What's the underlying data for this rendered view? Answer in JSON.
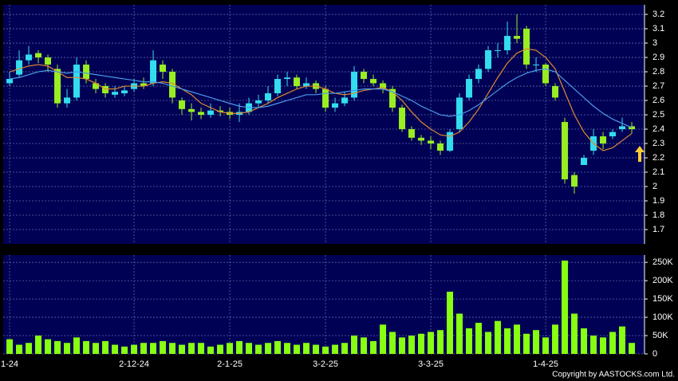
{
  "chart_data": [
    {
      "type": "candlestick",
      "xlim": [
        -0.67,
        66.33
      ],
      "ylim": [
        1.6,
        3.267
      ],
      "yticks": [
        1.7,
        1.8,
        1.9,
        2,
        2.1,
        2.2,
        2.3,
        2.4,
        2.5,
        2.6,
        2.7,
        2.8,
        2.9,
        3,
        3.1,
        3.2
      ],
      "grid": true,
      "up_color": "#33ddee",
      "down_color": "#99ee22",
      "open": [
        2.72,
        2.78,
        2.88,
        2.93,
        2.9,
        2.82,
        2.58,
        2.62,
        2.85,
        2.72,
        2.7,
        2.64,
        2.65,
        2.68,
        2.72,
        2.72,
        2.85,
        2.8,
        2.6,
        2.54,
        2.52,
        2.5,
        2.53,
        2.52,
        2.5,
        2.52,
        2.58,
        2.6,
        2.65,
        2.75,
        2.76,
        2.7,
        2.72,
        2.68,
        2.55,
        2.58,
        2.62,
        2.8,
        2.75,
        2.72,
        2.68,
        2.55,
        2.4,
        2.34,
        2.32,
        2.3,
        2.25,
        2.4,
        2.62,
        2.75,
        2.82,
        2.95,
        2.95,
        3.05,
        3.1,
        2.85,
        2.85,
        2.7,
        2.45,
        2.08,
        2.15,
        2.25,
        2.35,
        2.35,
        2.4,
        2.42
      ],
      "high": [
        2.8,
        2.95,
        2.98,
        2.95,
        2.92,
        2.85,
        2.68,
        2.9,
        2.88,
        2.75,
        2.72,
        2.7,
        2.7,
        2.75,
        2.76,
        2.95,
        2.88,
        2.82,
        2.62,
        2.58,
        2.55,
        2.58,
        2.56,
        2.55,
        2.58,
        2.62,
        2.64,
        2.7,
        2.78,
        2.8,
        2.78,
        2.76,
        2.74,
        2.7,
        2.62,
        2.66,
        2.84,
        2.82,
        2.78,
        2.74,
        2.7,
        2.57,
        2.42,
        2.36,
        2.35,
        2.32,
        2.4,
        2.65,
        2.78,
        2.85,
        2.98,
        3.0,
        3.15,
        3.2,
        3.12,
        2.9,
        2.86,
        2.72,
        2.48,
        2.1,
        2.22,
        2.4,
        2.38,
        2.4,
        2.48,
        2.45
      ],
      "low": [
        2.7,
        2.76,
        2.85,
        2.86,
        2.8,
        2.55,
        2.55,
        2.6,
        2.72,
        2.65,
        2.62,
        2.62,
        2.63,
        2.66,
        2.68,
        2.7,
        2.75,
        2.58,
        2.5,
        2.46,
        2.47,
        2.48,
        2.49,
        2.47,
        2.45,
        2.5,
        2.55,
        2.58,
        2.63,
        2.7,
        2.68,
        2.68,
        2.65,
        2.52,
        2.52,
        2.56,
        2.6,
        2.72,
        2.7,
        2.65,
        2.52,
        2.38,
        2.32,
        2.29,
        2.26,
        2.22,
        2.24,
        2.38,
        2.6,
        2.72,
        2.8,
        2.9,
        2.92,
        3.0,
        2.82,
        2.8,
        2.7,
        2.6,
        2.02,
        1.95,
        2.15,
        2.22,
        2.26,
        2.33,
        2.38,
        2.37
      ],
      "close": [
        2.75,
        2.88,
        2.92,
        2.9,
        2.85,
        2.58,
        2.62,
        2.85,
        2.75,
        2.68,
        2.65,
        2.66,
        2.67,
        2.72,
        2.7,
        2.88,
        2.8,
        2.62,
        2.54,
        2.52,
        2.5,
        2.53,
        2.52,
        2.5,
        2.52,
        2.58,
        2.6,
        2.65,
        2.75,
        2.76,
        2.7,
        2.72,
        2.68,
        2.55,
        2.58,
        2.62,
        2.8,
        2.75,
        2.72,
        2.68,
        2.55,
        2.4,
        2.34,
        2.32,
        2.3,
        2.25,
        2.38,
        2.62,
        2.75,
        2.82,
        2.95,
        2.95,
        3.05,
        3.03,
        2.85,
        2.85,
        2.72,
        2.62,
        2.05,
        2.0,
        2.2,
        2.35,
        2.3,
        2.38,
        2.42,
        2.4
      ],
      "lines": [
        {
          "color": "#e08a30",
          "values": [
            2.8,
            2.82,
            2.84,
            2.85,
            2.84,
            2.8,
            2.76,
            2.76,
            2.75,
            2.72,
            2.68,
            2.68,
            2.7,
            2.7,
            2.7,
            2.72,
            2.73,
            2.72,
            2.68,
            2.64,
            2.58,
            2.55,
            2.52,
            2.51,
            2.51,
            2.52,
            2.55,
            2.58,
            2.62,
            2.65,
            2.68,
            2.7,
            2.7,
            2.68,
            2.65,
            2.64,
            2.65,
            2.67,
            2.68,
            2.69,
            2.66,
            2.6,
            2.52,
            2.45,
            2.4,
            2.36,
            2.35,
            2.38,
            2.45,
            2.54,
            2.65,
            2.76,
            2.86,
            2.93,
            2.96,
            2.95,
            2.9,
            2.82,
            2.66,
            2.5,
            2.38,
            2.3,
            2.25,
            2.27,
            2.32,
            2.37
          ]
        },
        {
          "color": "#4a9be8",
          "values": [
            2.75,
            2.76,
            2.78,
            2.8,
            2.81,
            2.8,
            2.79,
            2.8,
            2.79,
            2.78,
            2.77,
            2.76,
            2.75,
            2.74,
            2.73,
            2.73,
            2.72,
            2.7,
            2.68,
            2.66,
            2.64,
            2.62,
            2.6,
            2.58,
            2.56,
            2.55,
            2.55,
            2.56,
            2.58,
            2.6,
            2.62,
            2.64,
            2.64,
            2.65,
            2.65,
            2.66,
            2.67,
            2.68,
            2.68,
            2.68,
            2.66,
            2.63,
            2.6,
            2.56,
            2.53,
            2.5,
            2.49,
            2.5,
            2.53,
            2.57,
            2.62,
            2.67,
            2.72,
            2.76,
            2.79,
            2.81,
            2.82,
            2.8,
            2.74,
            2.68,
            2.62,
            2.56,
            2.51,
            2.47,
            2.44,
            2.41
          ]
        }
      ]
    },
    {
      "type": "bar",
      "color": "#88ff11",
      "xlim": [
        -0.67,
        66.33
      ],
      "ylim": [
        0,
        270000
      ],
      "xticks": [
        {
          "value": 0,
          "label": "1-24"
        },
        {
          "value": 13,
          "label": "2-12-24"
        },
        {
          "value": 23,
          "label": "2-1-25"
        },
        {
          "value": 33,
          "label": "3-2-25"
        },
        {
          "value": 44,
          "label": "3-3-25"
        },
        {
          "value": 56,
          "label": "1-4-25"
        }
      ],
      "yticks": [
        0,
        {
          "value": 50000,
          "label": "50K"
        },
        {
          "value": 100000,
          "label": "100K"
        },
        {
          "value": 150000,
          "label": "150K"
        },
        {
          "value": 200000,
          "label": "200K"
        },
        {
          "value": 250000,
          "label": "250K"
        }
      ],
      "grid": true,
      "values": [
        40000,
        25000,
        30000,
        50000,
        40000,
        35000,
        30000,
        45000,
        35000,
        30000,
        35000,
        25000,
        20000,
        25000,
        30000,
        30000,
        35000,
        30000,
        25000,
        30000,
        30000,
        20000,
        25000,
        30000,
        35000,
        30000,
        25000,
        30000,
        35000,
        30000,
        25000,
        30000,
        25000,
        20000,
        25000,
        30000,
        50000,
        45000,
        35000,
        80000,
        60000,
        45000,
        50000,
        55000,
        60000,
        65000,
        170000,
        110000,
        70000,
        85000,
        60000,
        90000,
        70000,
        80000,
        55000,
        65000,
        45000,
        80000,
        255000,
        110000,
        70000,
        50000,
        45000,
        60000,
        75000,
        30000
      ]
    }
  ],
  "footer": "Copyright by AASTOCKS.com Ltd."
}
